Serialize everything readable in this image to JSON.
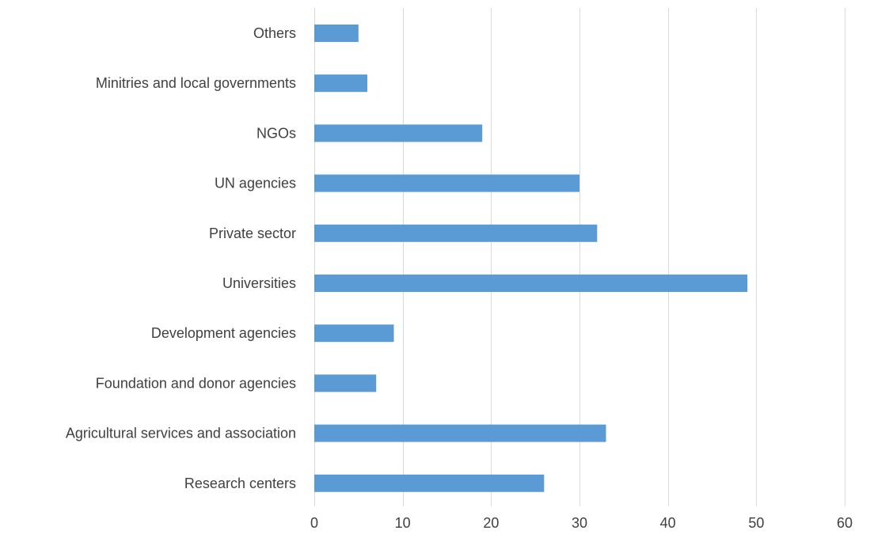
{
  "chart_data": {
    "type": "bar",
    "orientation": "horizontal",
    "title": "",
    "xlabel": "",
    "ylabel": "",
    "categories": [
      "Others",
      "Minitries and local governments",
      "NGOs",
      "UN agencies",
      "Private sector",
      "Universities",
      "Development agencies",
      "Foundation and donor agencies",
      "Agricultural services and association",
      "Research centers"
    ],
    "values": [
      5,
      6,
      19,
      30,
      32,
      49,
      9,
      7,
      33,
      26
    ],
    "xlim": [
      0,
      60
    ],
    "xticks": [
      0,
      10,
      20,
      30,
      40,
      50,
      60
    ],
    "grid": "vertical",
    "legend": "none",
    "colors": {
      "bar": "#5b9bd5",
      "grid": "#d9d9d9",
      "text": "#404040"
    }
  }
}
